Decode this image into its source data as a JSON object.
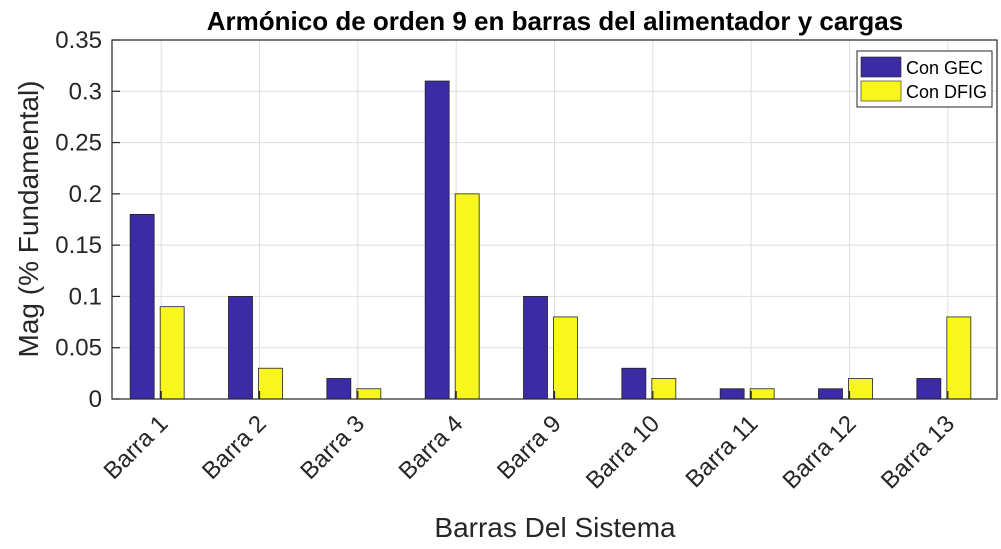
{
  "chart_data": {
    "type": "bar",
    "title": "Armónico de orden 9 en barras del alimentador y cargas",
    "xlabel": "Barras Del Sistema",
    "ylabel": "Mag (% Fundamental)",
    "categories": [
      "Barra 1",
      "Barra 2",
      "Barra 3",
      "Barra 4",
      "Barra 9",
      "Barra 10",
      "Barra 11",
      "Barra 12",
      "Barra 13"
    ],
    "series": [
      {
        "name": "Con GEC",
        "color": "#3b2ca5",
        "values": [
          0.18,
          0.1,
          0.02,
          0.31,
          0.1,
          0.03,
          0.01,
          0.01,
          0.02
        ]
      },
      {
        "name": "Con DFIG",
        "color": "#f7f71e",
        "values": [
          0.09,
          0.03,
          0.01,
          0.2,
          0.08,
          0.02,
          0.01,
          0.02,
          0.08
        ]
      }
    ],
    "ylim": [
      0,
      0.35
    ],
    "yticks": [
      0,
      0.05,
      0.1,
      0.15,
      0.2,
      0.25,
      0.3,
      0.35
    ],
    "ytick_labels": [
      "0",
      "0.05",
      "0.1",
      "0.15",
      "0.2",
      "0.25",
      "0.3",
      "0.35"
    ],
    "grid": true,
    "legend_position": "top-right"
  }
}
